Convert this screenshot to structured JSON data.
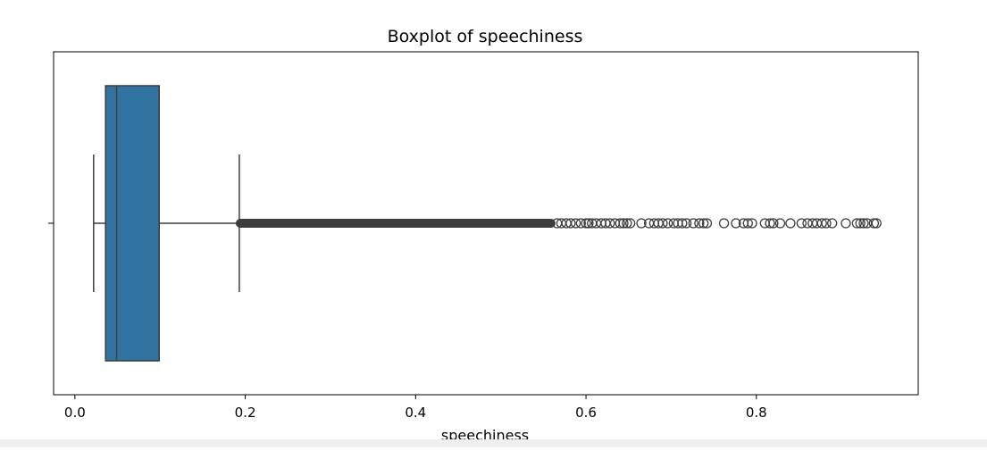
{
  "chart_data": {
    "type": "boxplot",
    "title": "Boxplot of speechiness",
    "xlabel": "speechiness",
    "ylabel": "",
    "orientation": "horizontal",
    "xlim": [
      -0.025,
      0.99
    ],
    "xticks": [
      0.0,
      0.2,
      0.4,
      0.6,
      0.8
    ],
    "xtick_labels": [
      "0.0",
      "0.2",
      "0.4",
      "0.6",
      "0.8"
    ],
    "grid": false,
    "box": {
      "whisker_low": 0.022,
      "q1": 0.036,
      "median": 0.049,
      "q3": 0.099,
      "whisker_high": 0.193,
      "fill_color": "#3274a1",
      "edge_color": "#3d3d3d"
    },
    "outliers": {
      "dense_range": [
        0.193,
        0.56
      ],
      "values": [
        0.566,
        0.571,
        0.577,
        0.582,
        0.588,
        0.594,
        0.6,
        0.603,
        0.607,
        0.612,
        0.618,
        0.623,
        0.628,
        0.634,
        0.64,
        0.644,
        0.648,
        0.652,
        0.665,
        0.674,
        0.68,
        0.685,
        0.69,
        0.696,
        0.703,
        0.708,
        0.713,
        0.718,
        0.726,
        0.733,
        0.738,
        0.742,
        0.762,
        0.776,
        0.785,
        0.79,
        0.795,
        0.81,
        0.816,
        0.82,
        0.828,
        0.84,
        0.853,
        0.86,
        0.866,
        0.871,
        0.877,
        0.882,
        0.889,
        0.905,
        0.918,
        0.922,
        0.926,
        0.93,
        0.938,
        0.941
      ]
    }
  }
}
